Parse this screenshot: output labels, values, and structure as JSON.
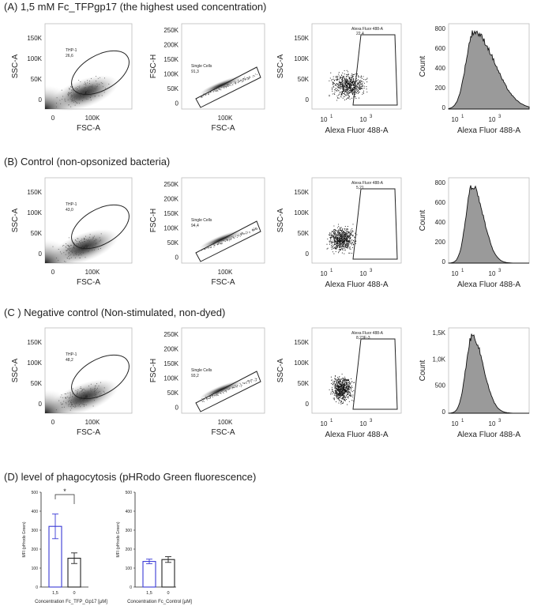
{
  "sections": {
    "a": "(A) 1,5 mM Fc_TFPgp17 (the highest used concentration)",
    "b": "(B) Control (non-opsonized bacteria)",
    "c": "(C ) Negative control (Non-stimulated, non-dyed)",
    "d": "(D) level of phagocytosis (pHRodo Green fluorescence)"
  },
  "axis": {
    "ssc": "SSC-A",
    "fsc": "FSC-A",
    "fsch": "FSC-H",
    "alexa": "Alexa Fluor 488-A",
    "count": "Count",
    "ticks_y_ssc": [
      "150K",
      "100K",
      "50K",
      "0"
    ],
    "ticks_y_fsch": [
      "250K",
      "200K",
      "150K",
      "100K",
      "50K",
      "0"
    ],
    "ticks_x_fsc": [
      "0",
      "100K"
    ],
    "ticks_x_alexa_exp": [
      "1",
      "3"
    ],
    "tick_base": "10"
  },
  "gates": {
    "thp1_name": "THP-1",
    "single_name": "Single Cells",
    "alexa_name": "Alexa Fluor 488-A",
    "a": {
      "thp1": "26,6",
      "single": "91,3",
      "alexa": "22,4"
    },
    "b": {
      "thp1": "43,0",
      "single": "94,4",
      "alexa": "5,21"
    },
    "c": {
      "thp1": "48,2",
      "single": "93,2",
      "alexa": "8,23E-3"
    }
  },
  "hist": {
    "a_ticks": [
      "800",
      "600",
      "400",
      "200",
      "0"
    ],
    "b_ticks": [
      "800",
      "600",
      "400",
      "200",
      "0"
    ],
    "c_ticks": [
      "1,5K",
      "1,0K",
      "500",
      "0"
    ]
  },
  "chart_data": [
    {
      "type": "bar",
      "ylabel": "MFI (pHrodo Green)",
      "xlabel": "Concentration Fc_TFP_Gp17 [µM]",
      "categories": [
        "1,5",
        "0"
      ],
      "values": [
        320,
        152
      ],
      "errors": [
        65,
        28
      ],
      "ylim": [
        0,
        500
      ],
      "yticks": [
        "0",
        "100",
        "200",
        "300",
        "400",
        "500"
      ],
      "significance": "*"
    },
    {
      "type": "bar",
      "ylabel": "MFI (pHrodo Green)",
      "xlabel": "Concentration Fc_Control [µM]",
      "categories": [
        "1,5",
        "0"
      ],
      "values": [
        135,
        145
      ],
      "errors": [
        12,
        15
      ],
      "ylim": [
        0,
        500
      ],
      "yticks": [
        "0",
        "100",
        "200",
        "300",
        "400",
        "500"
      ]
    }
  ]
}
